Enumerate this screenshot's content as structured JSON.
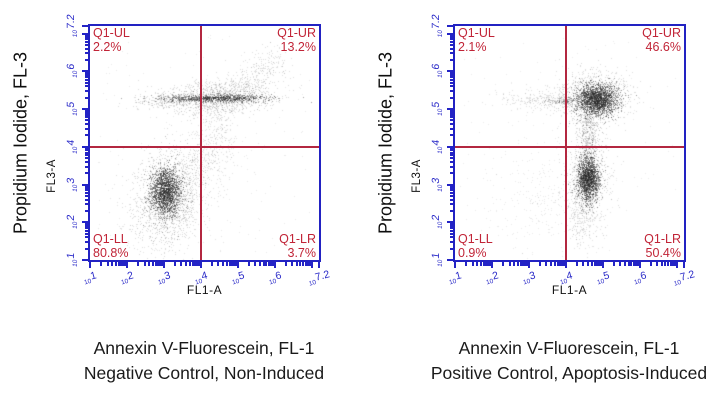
{
  "colors": {
    "frame_blue": "#2222c2",
    "tick_blue": "#2323c6",
    "gate_red": "#b32740",
    "quadrant_text_red": "#c12437",
    "text_black": "#1a1a1a",
    "dot_gray": "#232323",
    "background": "#ffffff"
  },
  "axes": {
    "scale": "log10",
    "exp_min": 1,
    "exp_max": 7.2,
    "tick_exponent_labels": [
      "1",
      "2",
      "3",
      "4",
      "5",
      "6",
      "7.2"
    ],
    "major_tick_exponents": [
      1,
      2,
      3,
      4,
      5,
      6,
      7,
      7.2
    ]
  },
  "plots": [
    {
      "outer_y_label": "Propidium Iodide, FL-3",
      "y_axis_label": "FL3-A",
      "x_axis_label": "FL1-A",
      "caption_line1": "Annexin V-Fluorescein, FL-1",
      "caption_line2": "Negative Control, Non-Induced",
      "quadrants": {
        "ul": {
          "name": "Q1-UL",
          "pct": "2.2%"
        },
        "ur": {
          "name": "Q1-UR",
          "pct": "13.2%"
        },
        "ll": {
          "name": "Q1-LL",
          "pct": "80.8%"
        },
        "lr": {
          "name": "Q1-LR",
          "pct": "3.7%"
        }
      }
    },
    {
      "outer_y_label": "Propidium Iodide, FL-3",
      "y_axis_label": "FL3-A",
      "x_axis_label": "FL1-A",
      "caption_line1": "Annexin V-Fluorescein, FL-1",
      "caption_line2": "Positive Control, Apoptosis-Induced",
      "quadrants": {
        "ul": {
          "name": "Q1-UL",
          "pct": "2.1%"
        },
        "ur": {
          "name": "Q1-UR",
          "pct": "46.6%"
        },
        "ll": {
          "name": "Q1-LL",
          "pct": "0.9%"
        },
        "lr": {
          "name": "Q1-LR",
          "pct": "50.4%"
        }
      }
    }
  ],
  "chart_data": [
    {
      "type": "scatter",
      "title": "Negative Control, Non-Induced",
      "xlabel": "FL1-A (Annexin V-Fluorescein)",
      "ylabel": "FL3-A (Propidium Iodide)",
      "x_scale": "log10",
      "y_scale": "log10",
      "xlim_exp": [
        1,
        7.2
      ],
      "ylim_exp": [
        1,
        7.2
      ],
      "gate_exp": {
        "x": 4,
        "y": 4
      },
      "quadrant_stats_pct": {
        "Q1-UL": 2.2,
        "Q1-UR": 13.2,
        "Q1-LL": 80.8,
        "Q1-LR": 3.7
      },
      "populations": [
        {
          "name": "viable-core",
          "n": 1600,
          "cx": 3.05,
          "cy": 2.8,
          "sx": 0.2,
          "sy": 0.3,
          "rho": 0,
          "alpha": 0.45
        },
        {
          "name": "viable-halo",
          "n": 1500,
          "cx": 3.1,
          "cy": 2.7,
          "sx": 0.42,
          "sy": 0.62,
          "rho": 0.1,
          "alpha": 0.16
        },
        {
          "name": "viable-lower-spray",
          "n": 260,
          "cx": 3.1,
          "cy": 2.2,
          "sx": 0.7,
          "sy": 0.55,
          "rho": 0,
          "alpha": 0.12
        },
        {
          "name": "debris-band-tight",
          "n": 850,
          "cx": 4.4,
          "cy": 5.28,
          "sx": 0.72,
          "sy": 0.05,
          "rho": 0,
          "alpha": 0.4
        },
        {
          "name": "debris-band-cloud",
          "n": 1150,
          "cx": 4.5,
          "cy": 5.3,
          "sx": 0.75,
          "sy": 0.22,
          "rho": 0.1,
          "alpha": 0.15
        },
        {
          "name": "band-left-tail",
          "n": 210,
          "cx": 3.1,
          "cy": 5.22,
          "sx": 0.45,
          "sy": 0.1,
          "rho": 0,
          "alpha": 0.15
        },
        {
          "name": "upper-right-diag",
          "n": 320,
          "cx": 5.55,
          "cy": 5.9,
          "sx": 0.5,
          "sy": 0.4,
          "rho": 0.65,
          "alpha": 0.14
        },
        {
          "name": "mid-vertical-trail",
          "n": 330,
          "cx": 4.35,
          "cy": 4.1,
          "sx": 0.3,
          "sy": 0.75,
          "rho": 0.15,
          "alpha": 0.13
        },
        {
          "name": "rising-diag-sparse",
          "n": 260,
          "cx": 3.9,
          "cy": 3.6,
          "sx": 0.5,
          "sy": 0.6,
          "rho": 0.55,
          "alpha": 0.12
        },
        {
          "name": "background",
          "n": 220,
          "uniform": true,
          "x0": 1.2,
          "x1": 7.0,
          "y0": 1.2,
          "y1": 7.0,
          "alpha": 0.1
        }
      ]
    },
    {
      "type": "scatter",
      "title": "Positive Control, Apoptosis-Induced",
      "xlabel": "FL1-A (Annexin V-Fluorescein)",
      "ylabel": "FL3-A (Propidium Iodide)",
      "x_scale": "log10",
      "y_scale": "log10",
      "xlim_exp": [
        1,
        7.2
      ],
      "ylim_exp": [
        1,
        7.2
      ],
      "gate_exp": {
        "x": 4,
        "y": 4
      },
      "quadrant_stats_pct": {
        "Q1-UL": 2.1,
        "Q1-UR": 46.6,
        "Q1-LL": 0.9,
        "Q1-LR": 50.4
      },
      "populations": [
        {
          "name": "late-apoptotic-core",
          "n": 1700,
          "cx": 4.85,
          "cy": 5.25,
          "sx": 0.27,
          "sy": 0.2,
          "rho": 0,
          "alpha": 0.45
        },
        {
          "name": "late-apoptotic-halo",
          "n": 1000,
          "cx": 4.8,
          "cy": 5.3,
          "sx": 0.5,
          "sy": 0.35,
          "rho": 0.1,
          "alpha": 0.15
        },
        {
          "name": "upper-left-arm",
          "n": 330,
          "cx": 3.5,
          "cy": 5.25,
          "sx": 0.6,
          "sy": 0.16,
          "rho": 0,
          "alpha": 0.13
        },
        {
          "name": "gray-smear-at-gate",
          "n": 120,
          "cx": 3.95,
          "cy": 5.2,
          "sx": 0.25,
          "sy": 0.05,
          "rho": 0,
          "alpha": 0.25
        },
        {
          "name": "vertical-neck",
          "n": 650,
          "cx": 4.62,
          "cy": 4.4,
          "sx": 0.16,
          "sy": 0.6,
          "rho": 0,
          "alpha": 0.16
        },
        {
          "name": "early-apoptotic-core",
          "n": 1500,
          "cx": 4.6,
          "cy": 3.15,
          "sx": 0.15,
          "sy": 0.28,
          "rho": 0,
          "alpha": 0.45
        },
        {
          "name": "early-apoptotic-halo",
          "n": 700,
          "cx": 4.6,
          "cy": 3.1,
          "sx": 0.3,
          "sy": 0.5,
          "rho": 0,
          "alpha": 0.15
        },
        {
          "name": "lower-trail",
          "n": 280,
          "cx": 4.5,
          "cy": 2.1,
          "sx": 0.22,
          "sy": 0.4,
          "rho": 0,
          "alpha": 0.13
        },
        {
          "name": "lower-left-sparse",
          "n": 260,
          "cx": 3.3,
          "cy": 2.7,
          "sx": 0.75,
          "sy": 0.7,
          "rho": 0,
          "alpha": 0.1
        },
        {
          "name": "background",
          "n": 160,
          "uniform": true,
          "x0": 1.2,
          "x1": 7.0,
          "y0": 1.3,
          "y1": 7.0,
          "alpha": 0.09
        }
      ]
    }
  ]
}
